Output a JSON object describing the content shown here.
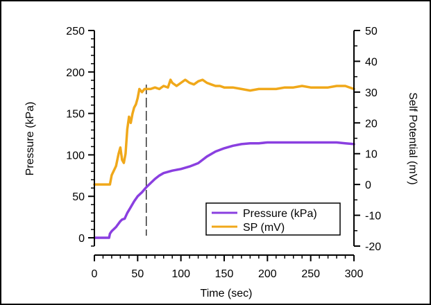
{
  "chart_data": {
    "type": "line",
    "title": "",
    "xlabel": "Time (sec)",
    "ylabel_left": "Pressure (kPa)",
    "ylabel_right": "Self Potential (mV)",
    "xlim": [
      0,
      300
    ],
    "ylim_left": [
      -10,
      250
    ],
    "ylim_right": [
      -20,
      50
    ],
    "x_ticks": [
      0,
      50,
      100,
      150,
      200,
      250,
      300
    ],
    "y_left_ticks": [
      0,
      50,
      100,
      150,
      200,
      250
    ],
    "y_right_ticks": [
      -20,
      -10,
      0,
      10,
      20,
      30,
      40,
      50
    ],
    "vline_x": 60,
    "legend_position": "bottom-right",
    "series": [
      {
        "name": "Pressure (kPa)",
        "axis": "left",
        "color": "#8a3fe0",
        "x": [
          0,
          10,
          17,
          18,
          20,
          25,
          30,
          32,
          35,
          38,
          42,
          46,
          50,
          55,
          60,
          65,
          70,
          75,
          80,
          90,
          100,
          110,
          120,
          125,
          130,
          140,
          150,
          160,
          170,
          180,
          190,
          200,
          210,
          220,
          230,
          240,
          250,
          260,
          270,
          280,
          290,
          300
        ],
        "y": [
          0,
          0,
          0,
          5,
          8,
          13,
          20,
          22,
          23,
          30,
          37,
          44,
          50,
          55,
          61,
          66,
          71,
          75,
          78,
          81,
          83,
          86,
          90,
          94,
          98,
          104,
          108,
          111,
          113,
          114,
          114,
          115,
          115,
          115,
          115,
          115,
          115,
          115,
          115,
          115,
          114,
          113
        ]
      },
      {
        "name": "SP (mV)",
        "axis": "right",
        "color": "#f0a81a",
        "x": [
          0,
          10,
          18,
          20,
          25,
          28,
          30,
          32,
          34,
          36,
          38,
          40,
          42,
          44,
          46,
          48,
          50,
          52,
          55,
          58,
          60,
          65,
          70,
          75,
          80,
          85,
          88,
          90,
          95,
          100,
          105,
          110,
          115,
          120,
          125,
          130,
          135,
          140,
          145,
          150,
          160,
          170,
          180,
          190,
          200,
          210,
          220,
          230,
          240,
          250,
          260,
          270,
          280,
          290,
          300
        ],
        "y": [
          0,
          0,
          0,
          3,
          6,
          10,
          12,
          8,
          7,
          10,
          18,
          22,
          20,
          23,
          25,
          26,
          28,
          31,
          30,
          31,
          31,
          31,
          31.5,
          31,
          32,
          31.5,
          34,
          33,
          32,
          33,
          34,
          33,
          32.5,
          33.5,
          34,
          33,
          32.5,
          32,
          32,
          31.5,
          31.5,
          31,
          30.5,
          31,
          31,
          31,
          31.5,
          31.5,
          32,
          31.5,
          31.5,
          31.5,
          32,
          32,
          31
        ]
      }
    ]
  }
}
